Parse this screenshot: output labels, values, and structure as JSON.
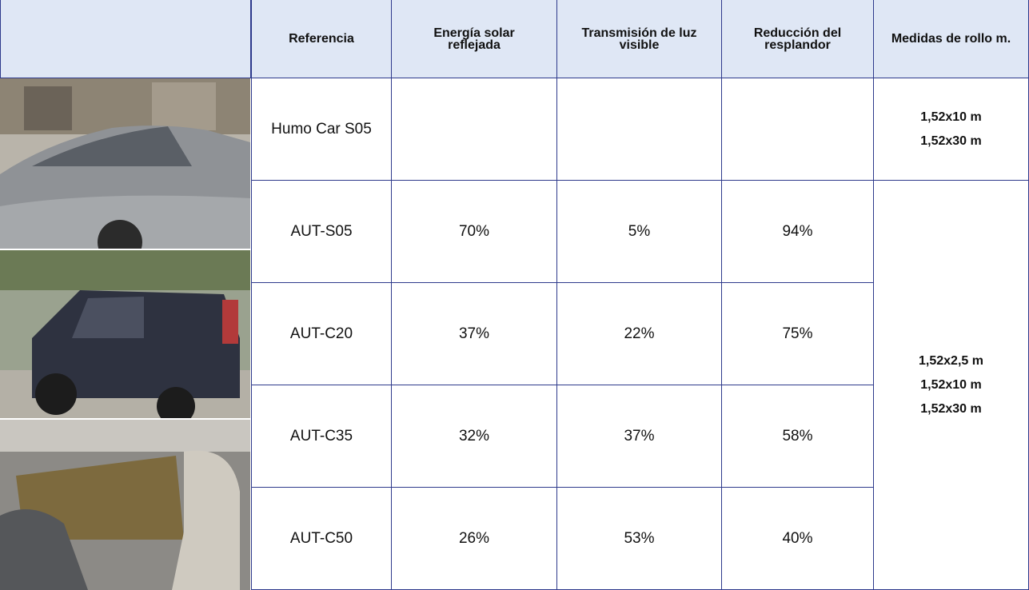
{
  "table": {
    "headers": [
      "Referencia",
      "Energía solar reflejada",
      "Transmisión de luz visible",
      "Reducción del resplandor",
      "Medidas de rollo m."
    ],
    "rows": [
      [
        "Humo Car S05"
      ],
      [
        "AUT-S05",
        "70%",
        "5%",
        "94%"
      ],
      [
        "AUT-C20",
        "37%",
        "22%",
        "75%"
      ],
      [
        "AUT-C35",
        "32%",
        "37%",
        "58%"
      ],
      [
        "AUT-C50",
        "26%",
        "53%",
        "40%"
      ]
    ],
    "sizes": [
      [
        "1,52x10 m",
        "1,52x30 m"
      ],
      [
        "1,52x2,5 m",
        "1,52x10 m",
        "1,52x30 m"
      ]
    ]
  }
}
